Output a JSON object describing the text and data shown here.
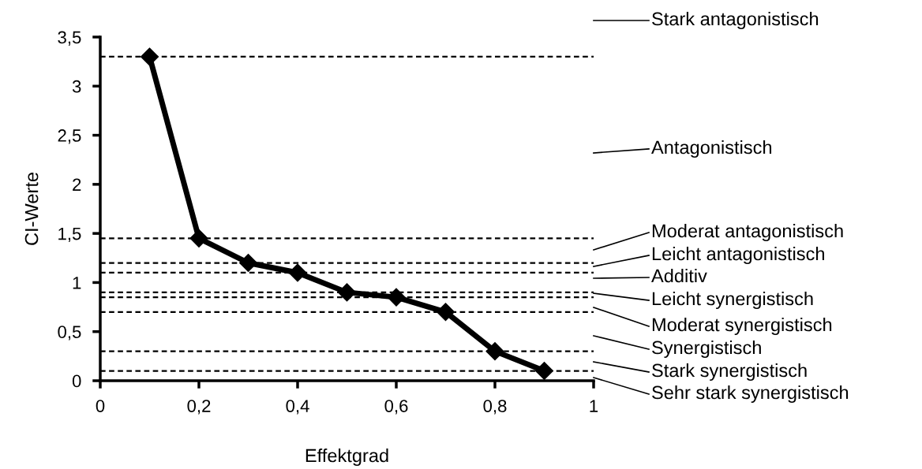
{
  "chart_data": {
    "type": "line",
    "xlabel": "Effektgrad",
    "ylabel": "CI-Werte",
    "x": [
      0.1,
      0.2,
      0.3,
      0.4,
      0.5,
      0.6,
      0.7,
      0.8,
      0.9
    ],
    "series": [
      {
        "color": "#000000",
        "values": [
          3.3,
          1.45,
          1.2,
          1.1,
          0.9,
          0.85,
          0.7,
          0.3,
          0.1
        ]
      }
    ],
    "marker": "diamond",
    "line_style": "solid",
    "grid": false,
    "xlim": [
      0,
      1
    ],
    "xticks": [
      {
        "value": 0,
        "label": "0"
      },
      {
        "value": 0.2,
        "label": "0,2"
      },
      {
        "value": 0.4,
        "label": "0,4"
      },
      {
        "value": 0.6,
        "label": "0,6"
      },
      {
        "value": 0.8,
        "label": "0,8"
      },
      {
        "value": 1,
        "label": "1"
      }
    ],
    "ylim": [
      0,
      3.5
    ],
    "yticks": [
      {
        "value": 0,
        "label": "0"
      },
      {
        "value": 0.5,
        "label": "0,5"
      },
      {
        "value": 1,
        "label": "1"
      },
      {
        "value": 1.5,
        "label": "1,5"
      },
      {
        "value": 2,
        "label": "2"
      },
      {
        "value": 2.5,
        "label": "2,5"
      },
      {
        "value": 3,
        "label": "3"
      },
      {
        "value": 3.5,
        "label": "3,5"
      }
    ],
    "ref_lines": [
      {
        "axis": "y",
        "value": 3.3,
        "color": "#000000",
        "line_style": "dashed"
      },
      {
        "axis": "y",
        "value": 1.45,
        "color": "#000000",
        "line_style": "dashed"
      },
      {
        "axis": "y",
        "value": 1.2,
        "color": "#000000",
        "line_style": "dashed"
      },
      {
        "axis": "y",
        "value": 1.1,
        "color": "#000000",
        "line_style": "dashed"
      },
      {
        "axis": "y",
        "value": 0.9,
        "color": "#000000",
        "line_style": "dashed"
      },
      {
        "axis": "y",
        "value": 0.85,
        "color": "#000000",
        "line_style": "dashed"
      },
      {
        "axis": "y",
        "value": 0.7,
        "color": "#000000",
        "line_style": "dashed"
      },
      {
        "axis": "y",
        "value": 0.3,
        "color": "#000000",
        "line_style": "dashed"
      },
      {
        "axis": "y",
        "value": 0.1,
        "color": "#000000",
        "line_style": "dashed"
      }
    ],
    "annotations": [
      "Stark antagonistisch",
      "Antagonistisch",
      "Moderat antagonistisch",
      "Leicht antagonistisch",
      "Additiv",
      "Leicht synergistisch",
      "Moderat synergistisch",
      "Synergistisch",
      "Stark synergistisch",
      "Sehr stark synergistisch"
    ]
  }
}
